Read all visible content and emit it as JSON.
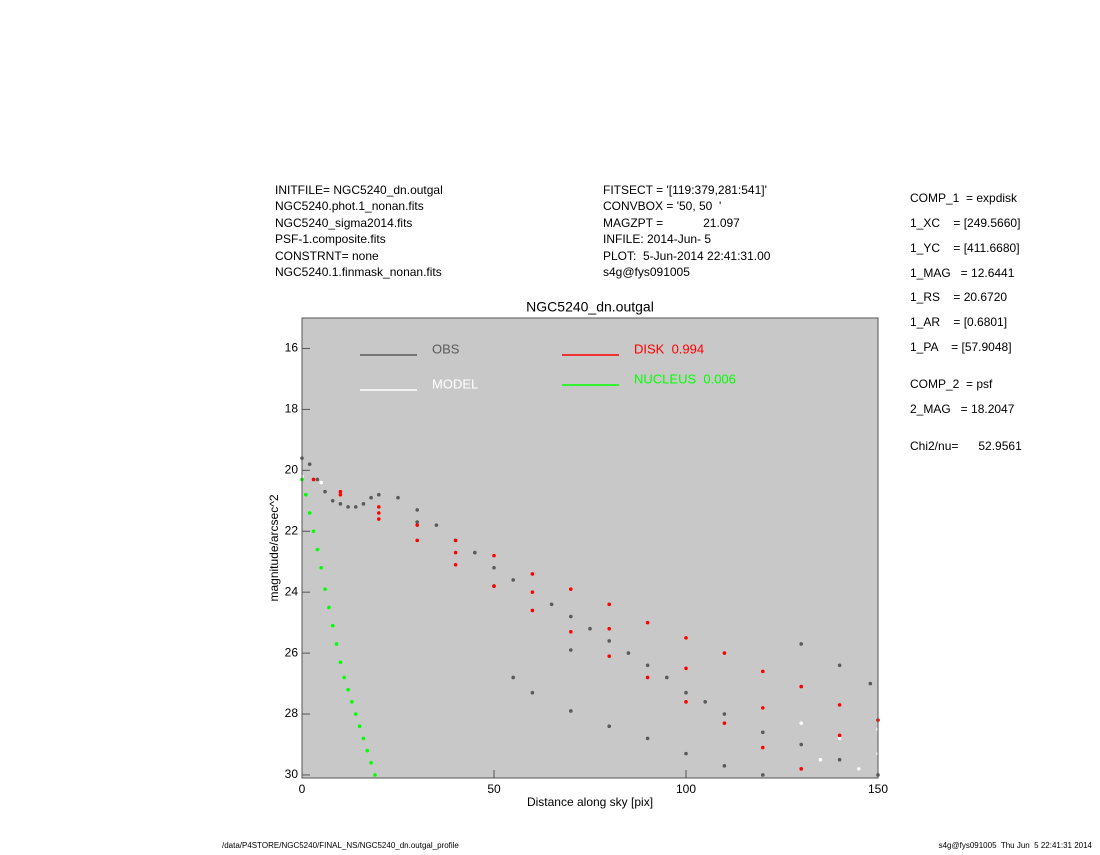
{
  "header": {
    "left": [
      "INITFILE= NGC5240_dn.outgal",
      "NGC5240.phot.1_nonan.fits",
      "NGC5240_sigma2014.fits",
      "PSF-1.composite.fits",
      "CONSTRNT= none",
      "NGC5240.1.finmask_nonan.fits"
    ],
    "middle": [
      "FITSECT = '[119:379,281:541]'",
      "CONVBOX = '50, 50  '",
      "MAGZPT =            21.097",
      "INFILE: 2014-Jun- 5",
      "PLOT:  5-Jun-2014 22:41:31.00",
      "s4g@fys091005"
    ],
    "right": [
      "COMP_1  = expdisk",
      "1_XC    = [249.5660]",
      "1_YC    = [411.6680]",
      "1_MAG   = 12.6441",
      "1_RS    = 20.6720",
      "1_AR    = [0.6801]",
      "1_PA    = [57.9048]",
      "COMP_2  = psf",
      "2_MAG   = 18.2047",
      "Chi2/nu=      52.9561"
    ]
  },
  "footer": {
    "left": "/data/P4STORE/NGC5240/FINAL_NS/NGC5240_dn.outgal_profile",
    "right": "s4g@fys091005  Thu Jun  5 22:41:31 2014"
  },
  "chart_data": {
    "type": "scatter",
    "title": "NGC5240_dn.outgal",
    "x_label": "Distance along sky [pix]",
    "y_label": "magnitude/arcsec^2",
    "xlim": [
      0,
      150
    ],
    "xticks": [
      0,
      50,
      100,
      150
    ],
    "ylim": [
      30.1,
      15
    ],
    "yticks": [
      16,
      18,
      20,
      22,
      24,
      26,
      28,
      30
    ],
    "background": "#c8c8c8",
    "series": [
      {
        "name": "OBS",
        "color": "#5a5a5a",
        "x": [
          0,
          2,
          4,
          6,
          8,
          10,
          12,
          14,
          16,
          18,
          20,
          25,
          30,
          35,
          40,
          45,
          50,
          55,
          60,
          65,
          70,
          75,
          80,
          85,
          90,
          95,
          100,
          105,
          110,
          120,
          130,
          140,
          145,
          150,
          55,
          60,
          70,
          80,
          90,
          100,
          110,
          120,
          30,
          50,
          70,
          130,
          140,
          148
        ],
        "values": [
          19.6,
          19.8,
          20.3,
          20.7,
          21.0,
          21.1,
          21.2,
          21.2,
          21.1,
          20.9,
          20.8,
          20.9,
          21.3,
          21.8,
          22.3,
          22.7,
          23.2,
          23.6,
          24.0,
          24.4,
          24.8,
          25.2,
          25.6,
          26.0,
          26.4,
          26.8,
          27.3,
          27.6,
          28.0,
          28.6,
          29.0,
          29.5,
          29.8,
          30.0,
          26.8,
          27.3,
          27.9,
          28.4,
          28.8,
          29.3,
          29.7,
          30.0,
          21.7,
          23.8,
          25.9,
          25.7,
          26.4,
          27.0
        ]
      },
      {
        "name": "MODEL",
        "color": "#ffffff",
        "x": [
          0,
          5,
          10,
          20,
          40,
          60,
          80,
          100,
          120,
          130,
          140,
          150,
          150,
          145,
          135
        ],
        "values": [
          20.2,
          20.4,
          20.8,
          21.4,
          22.7,
          24.0,
          25.2,
          26.5,
          27.8,
          28.3,
          28.8,
          29.3,
          28.5,
          29.8,
          29.5
        ]
      },
      {
        "name": "DISK  0.994",
        "color": "#ff0000",
        "x": [
          3,
          10,
          20,
          30,
          40,
          50,
          60,
          70,
          80,
          90,
          100,
          110,
          120,
          130,
          140,
          150,
          10,
          20,
          30,
          40,
          50,
          60,
          70,
          80,
          90,
          100,
          110,
          120,
          130,
          20,
          40,
          60,
          80,
          100,
          120,
          140
        ],
        "values": [
          20.3,
          20.7,
          21.2,
          21.8,
          22.3,
          22.8,
          23.4,
          23.9,
          24.4,
          25.0,
          25.5,
          26.0,
          26.6,
          27.1,
          27.7,
          28.2,
          20.8,
          21.6,
          22.3,
          23.1,
          23.8,
          24.6,
          25.3,
          26.1,
          26.8,
          27.6,
          28.3,
          29.1,
          29.8,
          21.4,
          22.7,
          24.0,
          25.2,
          26.5,
          27.8,
          28.7
        ]
      },
      {
        "name": "NUCLEUS  0.006",
        "color": "#00ff00",
        "x": [
          0,
          1,
          2,
          3,
          4,
          5,
          6,
          7,
          8,
          9,
          10,
          11,
          12,
          13,
          14,
          15,
          16,
          17,
          18,
          19
        ],
        "values": [
          20.3,
          20.8,
          21.4,
          22.0,
          22.6,
          23.2,
          23.9,
          24.5,
          25.1,
          25.7,
          26.3,
          26.8,
          27.2,
          27.6,
          28.0,
          28.4,
          28.8,
          29.2,
          29.6,
          30.0
        ]
      }
    ]
  }
}
